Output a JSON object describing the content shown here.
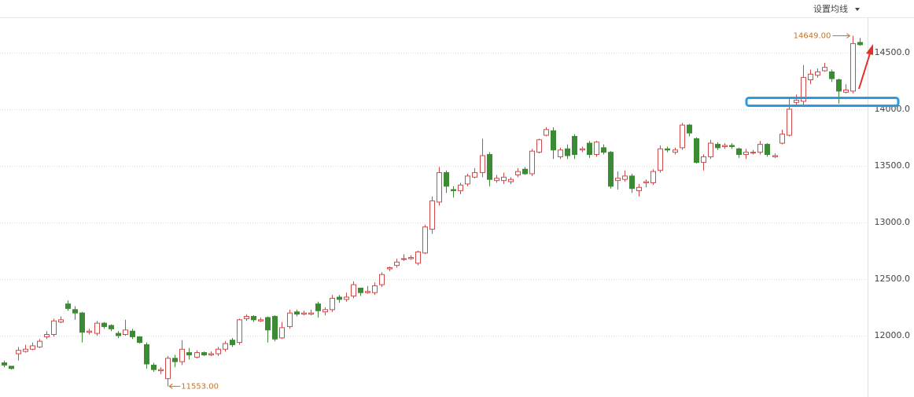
{
  "toolbar": {
    "label": "设置均线"
  },
  "chart_data": {
    "type": "candlestick",
    "open": [
      11760,
      11730,
      11840,
      11860,
      11880,
      11900,
      11990,
      12010,
      12120,
      12280,
      12230,
      12200,
      12030,
      12020,
      12110,
      12090,
      12020,
      12010,
      12040,
      11990,
      11920,
      11740,
      11690,
      11620,
      11800,
      11770,
      11850,
      11810,
      11850,
      11830,
      11840,
      11880,
      11960,
      11940,
      12150,
      12170,
      12130,
      12160,
      12170,
      11980,
      12080,
      12210,
      12190,
      12190,
      12280,
      12210,
      12230,
      12340,
      12320,
      12350,
      12420,
      12380,
      12380,
      12450,
      12590,
      12620,
      12680,
      12680,
      12640,
      12730,
      12940,
      13180,
      13440,
      13290,
      13280,
      13340,
      13400,
      13440,
      13600,
      13370,
      13370,
      13360,
      13420,
      13470,
      13430,
      13620,
      13770,
      13810,
      13580,
      13650,
      13760,
      13640,
      13700,
      13600,
      13660,
      13620,
      13370,
      13380,
      13410,
      13280,
      13350,
      13350,
      13460,
      13650,
      13620,
      13660,
      13860,
      13740,
      13530,
      13580,
      13690,
      13670,
      13680,
      13650,
      13600,
      13620,
      13620,
      13690,
      13580,
      13700,
      13770,
      14060,
      14070,
      14260,
      14300,
      14340,
      14330,
      14260,
      14150,
      14160,
      14590
    ],
    "high": [
      11780,
      11730,
      11900,
      11920,
      11940,
      11970,
      12040,
      12150,
      12170,
      12310,
      12260,
      12210,
      12060,
      12130,
      12120,
      12100,
      12040,
      12140,
      12060,
      11990,
      11940,
      11760,
      11720,
      11820,
      11830,
      11960,
      11890,
      11870,
      11860,
      11860,
      11900,
      11950,
      11980,
      12150,
      12190,
      12180,
      12160,
      12170,
      12180,
      12120,
      12230,
      12230,
      12220,
      12230,
      12300,
      12250,
      12360,
      12360,
      12380,
      12480,
      12420,
      12440,
      12470,
      12560,
      12610,
      12680,
      12720,
      12710,
      12750,
      12980,
      13230,
      13490,
      13460,
      13320,
      13350,
      13430,
      13480,
      13740,
      13620,
      13420,
      13440,
      13400,
      13480,
      13490,
      13650,
      13740,
      13840,
      13840,
      13660,
      13690,
      13780,
      13670,
      13720,
      13720,
      13690,
      13630,
      13450,
      13460,
      13430,
      13340,
      13380,
      13470,
      13680,
      13670,
      13660,
      13880,
      13870,
      13750,
      13600,
      13730,
      13710,
      13700,
      13700,
      13660,
      13650,
      13640,
      13720,
      13700,
      13610,
      13820,
      14090,
      14130,
      14390,
      14350,
      14360,
      14410,
      14350,
      14270,
      14220,
      14649,
      14630
    ],
    "low": [
      11720,
      11700,
      11780,
      11850,
      11870,
      11890,
      11970,
      11990,
      12110,
      12220,
      12140,
      11940,
      12010,
      12000,
      12060,
      12040,
      11980,
      12000,
      11970,
      11930,
      11710,
      11680,
      11660,
      11553,
      11720,
      11740,
      11790,
      11800,
      11820,
      11820,
      11820,
      11860,
      11900,
      11920,
      12130,
      12120,
      12120,
      11940,
      11950,
      11970,
      12060,
      12170,
      12180,
      12180,
      12160,
      12180,
      12210,
      12290,
      12300,
      12330,
      12350,
      12370,
      12360,
      12430,
      12570,
      12600,
      12660,
      12670,
      12620,
      12720,
      12900,
      13150,
      13260,
      13220,
      13250,
      13320,
      13390,
      13400,
      13320,
      13350,
      13340,
      13340,
      13400,
      13420,
      13410,
      13610,
      13760,
      13560,
      13560,
      13560,
      13560,
      13620,
      13570,
      13580,
      13600,
      13300,
      13290,
      13360,
      13260,
      13230,
      13310,
      13330,
      13440,
      13620,
      13600,
      13640,
      13760,
      13520,
      13460,
      13560,
      13640,
      13650,
      13650,
      13570,
      13560,
      13600,
      13600,
      13580,
      13570,
      13690,
      13760,
      14040,
      14040,
      14220,
      14280,
      14330,
      14240,
      14050,
      14140,
      14140,
      14560
    ],
    "close": [
      11740,
      11710,
      11870,
      11880,
      11910,
      11950,
      12010,
      12130,
      12140,
      12240,
      12200,
      12030,
      12040,
      12110,
      12080,
      12060,
      12000,
      12050,
      11990,
      11940,
      11750,
      11700,
      11700,
      11800,
      11770,
      11880,
      11830,
      11850,
      11830,
      11840,
      11880,
      11930,
      11920,
      12140,
      12170,
      12140,
      12140,
      12050,
      11970,
      12070,
      12200,
      12190,
      12200,
      12200,
      12220,
      12230,
      12330,
      12320,
      12340,
      12450,
      12380,
      12390,
      12440,
      12540,
      12600,
      12650,
      12680,
      12690,
      12740,
      12960,
      13190,
      13440,
      13320,
      13280,
      13330,
      13410,
      13440,
      13590,
      13380,
      13390,
      13400,
      13380,
      13450,
      13430,
      13630,
      13730,
      13820,
      13640,
      13640,
      13590,
      13600,
      13650,
      13600,
      13710,
      13620,
      13320,
      13390,
      13410,
      13300,
      13310,
      13360,
      13450,
      13650,
      13640,
      13640,
      13860,
      13790,
      13530,
      13580,
      13700,
      13660,
      13680,
      13670,
      13600,
      13620,
      13620,
      13690,
      13600,
      13590,
      13780,
      14000,
      14080,
      14280,
      14310,
      14330,
      14370,
      14270,
      14160,
      14170,
      14580,
      14570
    ],
    "up_color": "#d04a4a",
    "down_color": "#3d8a34",
    "annotations": {
      "max": "14649.00",
      "min": "11553.00"
    },
    "annotation_color": "#c0762a",
    "ylim": [
      11458,
      14812
    ],
    "yticks": [
      {
        "value": 12000,
        "label": "12000.0"
      },
      {
        "value": 12500,
        "label": "12500.0"
      },
      {
        "value": 13000,
        "label": "13000.0"
      },
      {
        "value": 13500,
        "label": "13500.0"
      },
      {
        "value": 14000,
        "label": "14000.0"
      },
      {
        "value": 14500,
        "label": "14500.0"
      }
    ],
    "grid": true
  }
}
